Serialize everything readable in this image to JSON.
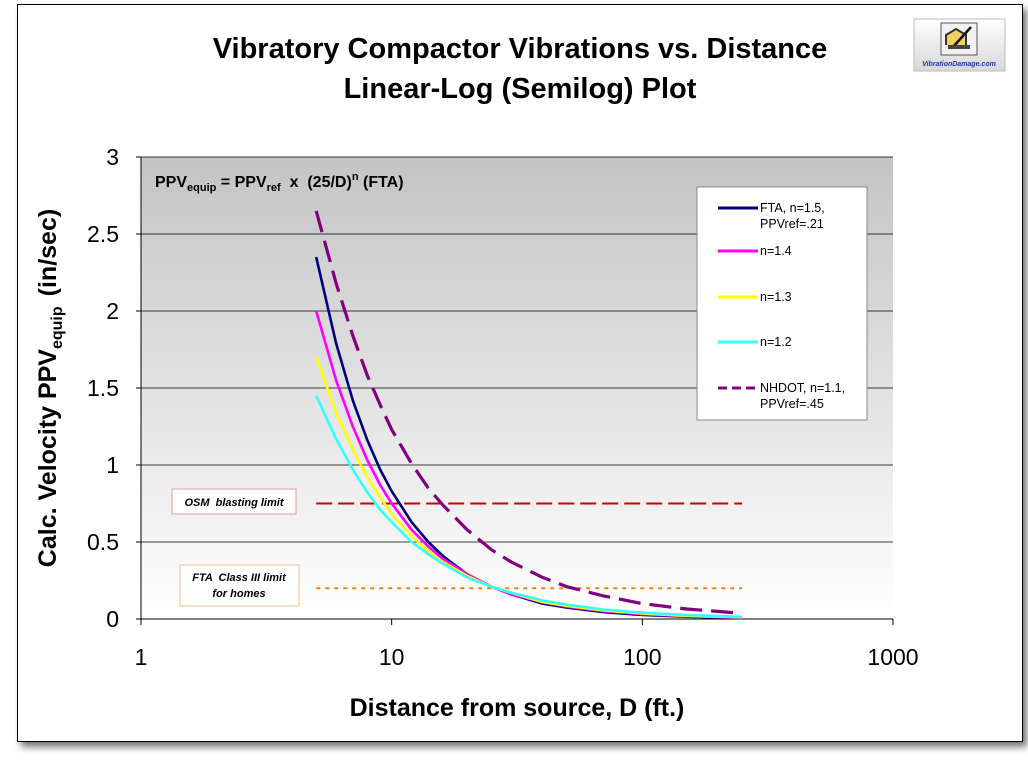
{
  "logo": {
    "caption": "VibrationDamage.com"
  },
  "chart_data": {
    "type": "line",
    "title": "Vibratory Compactor Vibrations vs. Distance",
    "subtitle": "Linear-Log (Semilog) Plot",
    "xlabel": "Distance from source, D (ft.)",
    "ylabel": {
      "main": "Calc. Velocity PPV",
      "sub": "equip",
      "unit": "(in/sec)"
    },
    "x_scale": "log",
    "xlim": [
      1,
      1000
    ],
    "ylim": [
      0,
      3
    ],
    "x_ticks": [
      "1",
      "10",
      "100",
      "1000"
    ],
    "y_ticks": [
      "0",
      "0.5",
      "1",
      "1.5",
      "2",
      "2.5",
      "3"
    ],
    "grid": "horizontal",
    "formula": {
      "lhs": "PPV",
      "lhs_sub": "equip",
      "eq": " = PPV",
      "ref_sub": "ref",
      "mid": "  x  (25/D)",
      "exp": "n",
      "tail": " (FTA)"
    },
    "legend_position": "right",
    "series": [
      {
        "name": "FTA, n=1.5, PPVref=.21",
        "legend_lines": [
          "FTA, n=1.5,",
          "PPVref=.21"
        ],
        "color": "#000080",
        "dash": "solid",
        "x": [
          5,
          6,
          7,
          8,
          9,
          10,
          12,
          14,
          16,
          20,
          25,
          30,
          40,
          50,
          70,
          100,
          150,
          250
        ],
        "y": [
          2.35,
          1.79,
          1.42,
          1.16,
          0.97,
          0.83,
          0.63,
          0.5,
          0.41,
          0.29,
          0.21,
          0.16,
          0.1,
          0.074,
          0.045,
          0.026,
          0.015,
          0.007
        ]
      },
      {
        "name": "n=1.4",
        "legend_lines": [
          "n=1.4"
        ],
        "color": "#ff00ff",
        "dash": "solid",
        "x": [
          5,
          6,
          7,
          8,
          9,
          10,
          12,
          14,
          16,
          20,
          25,
          30,
          40,
          50,
          70,
          100,
          150,
          250
        ],
        "y": [
          2.0,
          1.55,
          1.25,
          1.03,
          0.87,
          0.75,
          0.58,
          0.47,
          0.39,
          0.29,
          0.21,
          0.16,
          0.11,
          0.08,
          0.051,
          0.031,
          0.018,
          0.009
        ]
      },
      {
        "name": "n=1.3",
        "legend_lines": [
          "n=1.3"
        ],
        "color": "#ffff00",
        "dash": "solid",
        "x": [
          5,
          6,
          7,
          8,
          9,
          10,
          12,
          14,
          16,
          20,
          25,
          30,
          40,
          50,
          70,
          100,
          150,
          250
        ],
        "y": [
          1.7,
          1.34,
          1.1,
          0.92,
          0.79,
          0.68,
          0.54,
          0.44,
          0.37,
          0.28,
          0.21,
          0.17,
          0.11,
          0.086,
          0.056,
          0.036,
          0.021,
          0.011
        ]
      },
      {
        "name": "n=1.2",
        "legend_lines": [
          "n=1.2"
        ],
        "color": "#33ffff",
        "dash": "solid",
        "x": [
          5,
          6,
          7,
          8,
          9,
          10,
          12,
          14,
          16,
          20,
          25,
          30,
          40,
          50,
          70,
          100,
          150,
          250
        ],
        "y": [
          1.45,
          1.17,
          0.97,
          0.82,
          0.71,
          0.63,
          0.5,
          0.42,
          0.36,
          0.27,
          0.21,
          0.17,
          0.12,
          0.093,
          0.062,
          0.041,
          0.025,
          0.014
        ]
      },
      {
        "name": "NHDOT, n=1.1, PPVref=.45",
        "legend_lines": [
          "NHDOT, n=1.1,",
          "PPVref=.45"
        ],
        "color": "#800080",
        "dash": "dashed",
        "x": [
          5,
          6,
          7,
          8,
          9,
          10,
          12,
          14,
          16,
          20,
          25,
          30,
          40,
          50,
          70,
          100,
          150,
          250
        ],
        "y": [
          2.65,
          2.18,
          1.84,
          1.58,
          1.39,
          1.23,
          1.01,
          0.85,
          0.74,
          0.58,
          0.45,
          0.37,
          0.27,
          0.21,
          0.15,
          0.1,
          0.065,
          0.037
        ]
      }
    ],
    "reference_lines": [
      {
        "label": "OSM  blasting limit",
        "y": 0.75,
        "x_range": [
          5,
          250
        ],
        "color": "#cc0000",
        "dash": "long"
      },
      {
        "label_lines": [
          "FTA  Class III limit",
          "for homes"
        ],
        "y": 0.2,
        "x_range": [
          5,
          250
        ],
        "color": "#ff8000",
        "dash": "dotted"
      }
    ]
  }
}
